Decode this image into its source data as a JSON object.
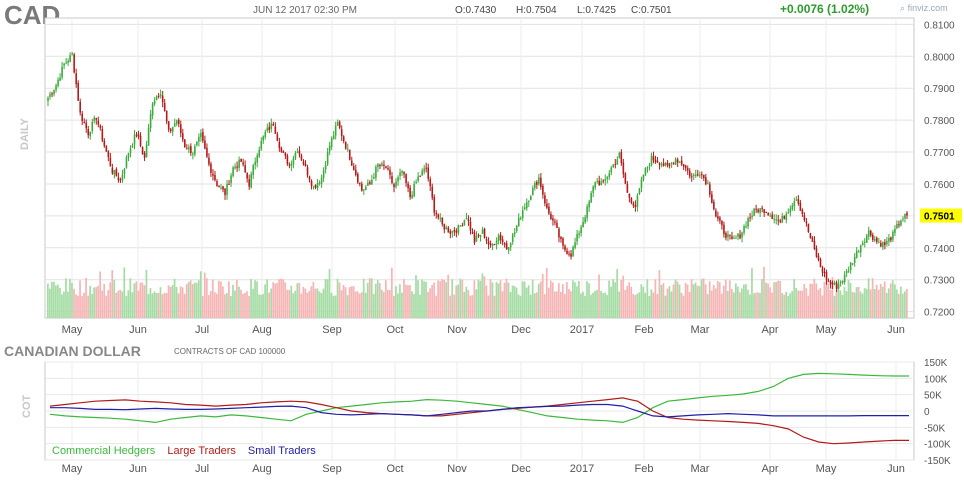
{
  "header": {
    "ticker": "CAD",
    "datetime": "JUN 12 2017 02:30 PM",
    "open": "O:0.7430",
    "high": "H:0.7504",
    "low": "L:0.7425",
    "close": "C:0.7501",
    "change": "+0.0076 (1.02%)",
    "brand": "finviz.com"
  },
  "side_label_price": "DAILY",
  "side_label_cot": "COT",
  "cot_title": "CANADIAN DOLLAR",
  "cot_subtitle": "CONTRACTS OF CAD 100000",
  "colors": {
    "up": "#3cab3c",
    "down": "#b31b1b",
    "vol_up": "#a4dca4",
    "vol_down": "#f5b5b5",
    "commercial": "#3cb93c",
    "large": "#b31b1b",
    "small": "#2020a8",
    "price_badge": "#ffff00"
  },
  "chart_data": [
    {
      "type": "candlestick",
      "title": "CAD",
      "ylim": [
        0.718,
        0.812
      ],
      "yticks": [
        "0.8100",
        "0.8000",
        "0.7900",
        "0.7800",
        "0.7700",
        "0.7600",
        "0.7500",
        "0.7400",
        "0.7300",
        "0.7200"
      ],
      "last_price": "0.7501",
      "months": [
        "May",
        "Jun",
        "Jul",
        "Aug",
        "Sep",
        "Oct",
        "Nov",
        "Dec",
        "2017",
        "Feb",
        "Mar",
        "Apr",
        "May",
        "Jun"
      ],
      "close_anchors": [
        [
          0,
          0.787
        ],
        [
          4,
          0.791
        ],
        [
          8,
          0.7975
        ],
        [
          12,
          0.8005
        ],
        [
          16,
          0.782
        ],
        [
          20,
          0.776
        ],
        [
          24,
          0.781
        ],
        [
          28,
          0.772
        ],
        [
          32,
          0.764
        ],
        [
          36,
          0.761
        ],
        [
          40,
          0.77
        ],
        [
          44,
          0.776
        ],
        [
          48,
          0.768
        ],
        [
          52,
          0.786
        ],
        [
          56,
          0.789
        ],
        [
          60,
          0.776
        ],
        [
          64,
          0.78
        ],
        [
          68,
          0.772
        ],
        [
          72,
          0.77
        ],
        [
          76,
          0.775
        ],
        [
          80,
          0.766
        ],
        [
          84,
          0.76
        ],
        [
          88,
          0.757
        ],
        [
          92,
          0.765
        ],
        [
          96,
          0.767
        ],
        [
          100,
          0.76
        ],
        [
          104,
          0.77
        ],
        [
          108,
          0.776
        ],
        [
          112,
          0.779
        ],
        [
          116,
          0.77
        ],
        [
          120,
          0.766
        ],
        [
          124,
          0.771
        ],
        [
          128,
          0.765
        ],
        [
          132,
          0.759
        ],
        [
          136,
          0.762
        ],
        [
          140,
          0.772
        ],
        [
          144,
          0.779
        ],
        [
          148,
          0.772
        ],
        [
          152,
          0.765
        ],
        [
          156,
          0.758
        ],
        [
          160,
          0.76
        ],
        [
          164,
          0.766
        ],
        [
          168,
          0.765
        ],
        [
          172,
          0.759
        ],
        [
          176,
          0.764
        ],
        [
          180,
          0.756
        ],
        [
          184,
          0.762
        ],
        [
          188,
          0.765
        ],
        [
          192,
          0.752
        ],
        [
          196,
          0.747
        ],
        [
          200,
          0.745
        ],
        [
          204,
          0.746
        ],
        [
          208,
          0.75
        ],
        [
          212,
          0.742
        ],
        [
          216,
          0.745
        ],
        [
          220,
          0.74
        ],
        [
          224,
          0.744
        ],
        [
          228,
          0.74
        ],
        [
          232,
          0.745
        ],
        [
          236,
          0.752
        ],
        [
          240,
          0.757
        ],
        [
          244,
          0.762
        ],
        [
          248,
          0.752
        ],
        [
          252,
          0.747
        ],
        [
          256,
          0.74
        ],
        [
          260,
          0.738
        ],
        [
          264,
          0.745
        ],
        [
          268,
          0.752
        ],
        [
          272,
          0.761
        ],
        [
          276,
          0.76
        ],
        [
          280,
          0.765
        ],
        [
          284,
          0.769
        ],
        [
          288,
          0.757
        ],
        [
          292,
          0.753
        ],
        [
          296,
          0.763
        ],
        [
          300,
          0.768
        ],
        [
          304,
          0.767
        ],
        [
          308,
          0.765
        ],
        [
          312,
          0.768
        ],
        [
          316,
          0.766
        ],
        [
          320,
          0.762
        ],
        [
          324,
          0.764
        ],
        [
          328,
          0.76
        ],
        [
          332,
          0.75
        ],
        [
          336,
          0.745
        ],
        [
          340,
          0.742
        ],
        [
          344,
          0.744
        ],
        [
          348,
          0.749
        ],
        [
          352,
          0.752
        ],
        [
          356,
          0.752
        ],
        [
          360,
          0.75
        ],
        [
          364,
          0.748
        ],
        [
          368,
          0.752
        ],
        [
          372,
          0.756
        ],
        [
          376,
          0.749
        ],
        [
          380,
          0.741
        ],
        [
          384,
          0.734
        ],
        [
          388,
          0.729
        ],
        [
          392,
          0.728
        ],
        [
          396,
          0.731
        ],
        [
          400,
          0.736
        ],
        [
          404,
          0.741
        ],
        [
          408,
          0.745
        ],
        [
          412,
          0.742
        ],
        [
          416,
          0.741
        ],
        [
          420,
          0.744
        ],
        [
          424,
          0.749
        ],
        [
          427,
          0.7501
        ]
      ],
      "series_note": "daily OHLC candles with volume bars"
    },
    {
      "type": "line",
      "title": "CANADIAN DOLLAR",
      "ylim": [
        -150000,
        150000
      ],
      "yticks": [
        "150K",
        "100K",
        "50K",
        "0",
        "-50K",
        "-100K",
        "-150K"
      ],
      "months": [
        "May",
        "Jun",
        "Jul",
        "Aug",
        "Sep",
        "Oct",
        "Nov",
        "Dec",
        "2017",
        "Feb",
        "Mar",
        "Apr",
        "May",
        "Jun"
      ],
      "x_weeks": 58,
      "series": [
        {
          "name": "Commercial Hedgers",
          "values": [
            -10000,
            -15000,
            -18000,
            -20000,
            -22000,
            -25000,
            -30000,
            -35000,
            -25000,
            -20000,
            -15000,
            -18000,
            -12000,
            -15000,
            -20000,
            -25000,
            -30000,
            -10000,
            0,
            10000,
            15000,
            20000,
            25000,
            28000,
            30000,
            35000,
            33000,
            30000,
            25000,
            20000,
            15000,
            5000,
            -5000,
            -15000,
            -20000,
            -25000,
            -28000,
            -30000,
            -35000,
            -20000,
            10000,
            30000,
            35000,
            40000,
            45000,
            48000,
            52000,
            60000,
            75000,
            100000,
            112000,
            115000,
            114000,
            112000,
            110000,
            108000,
            107000,
            107000
          ]
        },
        {
          "name": "Large Traders",
          "values": [
            15000,
            20000,
            25000,
            30000,
            32000,
            34000,
            30000,
            28000,
            25000,
            20000,
            18000,
            15000,
            18000,
            20000,
            25000,
            28000,
            30000,
            28000,
            20000,
            10000,
            0,
            -5000,
            -8000,
            -10000,
            -12000,
            -15000,
            -15000,
            -10000,
            -5000,
            0,
            5000,
            8000,
            12000,
            15000,
            20000,
            25000,
            30000,
            35000,
            40000,
            30000,
            0,
            -20000,
            -25000,
            -28000,
            -30000,
            -32000,
            -35000,
            -38000,
            -45000,
            -55000,
            -80000,
            -95000,
            -100000,
            -98000,
            -95000,
            -92000,
            -90000,
            -90000
          ]
        },
        {
          "name": "Small Traders",
          "values": [
            10000,
            10000,
            8000,
            5000,
            5000,
            4000,
            6000,
            8000,
            6000,
            5000,
            5000,
            6000,
            8000,
            10000,
            12000,
            14000,
            15000,
            10000,
            -5000,
            -10000,
            -12000,
            -10000,
            -8000,
            -10000,
            -12000,
            -15000,
            -10000,
            -5000,
            0,
            0,
            5000,
            10000,
            12000,
            14000,
            15000,
            18000,
            20000,
            20000,
            15000,
            0,
            -15000,
            -18000,
            -15000,
            -12000,
            -10000,
            -8000,
            -10000,
            -12000,
            -15000,
            -15000,
            -15000,
            -15000,
            -15000,
            -15000,
            -14000,
            -14000,
            -14000,
            -14000
          ]
        }
      ]
    }
  ]
}
